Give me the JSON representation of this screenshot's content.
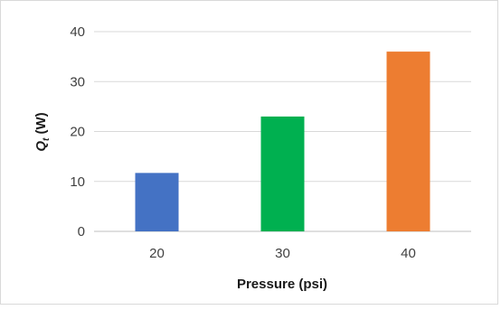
{
  "chart_data": {
    "type": "bar",
    "categories": [
      "20",
      "30",
      "40"
    ],
    "values": [
      11.7,
      23,
      36
    ],
    "bar_colors": [
      "#4472c4",
      "#00b050",
      "#ed7d31"
    ],
    "xlabel": "Pressure (psi)",
    "ylabel_symbol": "Q",
    "ylabel_subscript": "t",
    "ylabel_unit": " (W)",
    "ylim": [
      0,
      40
    ],
    "yticks": [
      "0",
      "10",
      "20",
      "30",
      "40"
    ],
    "grid": true,
    "legend": "none"
  }
}
